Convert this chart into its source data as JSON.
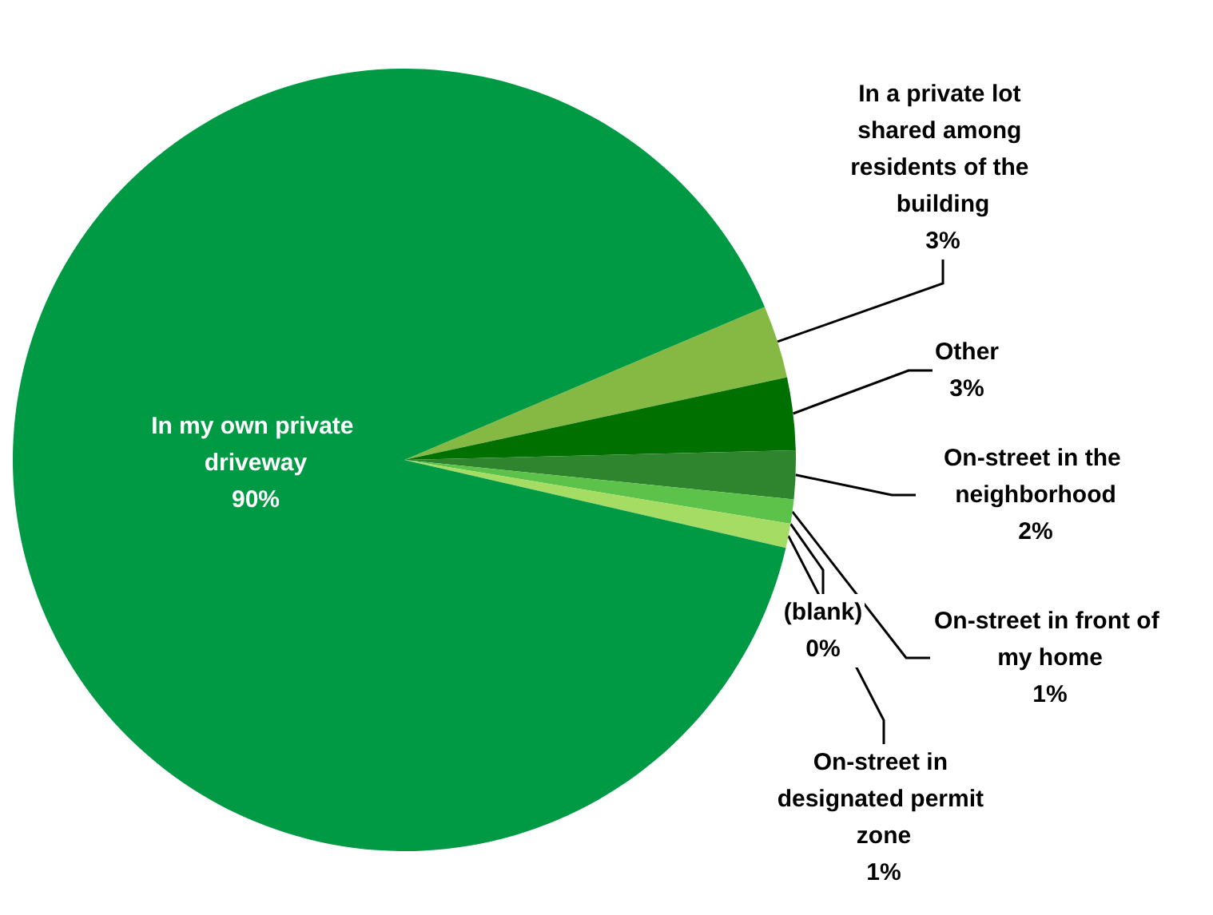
{
  "chart_data": {
    "type": "pie",
    "categories": [
      "In a private lot shared among residents of the building",
      "Other",
      "On-street in the neighborhood",
      "On-street in front of my home",
      "(blank)",
      "On-street in designated permit zone",
      "In my own private driveway"
    ],
    "values": [
      3,
      3,
      2,
      1,
      0,
      1,
      90
    ],
    "value_labels": [
      "3%",
      "3%",
      "2%",
      "1%",
      "0%",
      "1%",
      "90%"
    ],
    "colors": [
      "#86b944",
      "#007000",
      "#2e852e",
      "#5cc24a",
      "#4aa845",
      "#a5dc63",
      "#009a44"
    ]
  }
}
